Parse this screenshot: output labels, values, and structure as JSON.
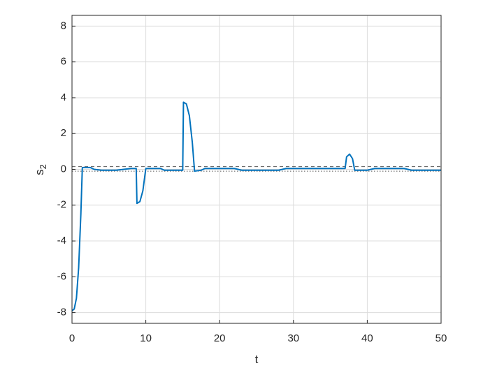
{
  "chart_data": {
    "type": "line",
    "xlabel": "t",
    "ylabel": "s",
    "ylabel_subscript": "2",
    "xlim": [
      0,
      50
    ],
    "ylim": [
      -8.6,
      8.6
    ],
    "xticks": [
      0,
      10,
      20,
      30,
      40,
      50
    ],
    "yticks": [
      -8,
      -6,
      -4,
      -2,
      0,
      2,
      4,
      6,
      8
    ],
    "grid": true,
    "series": [
      {
        "color": "#0072bd",
        "x": [
          0,
          0.3,
          0.6,
          0.9,
          1.2,
          1.4,
          2.5,
          3,
          4,
          6,
          8,
          8.7,
          8.8,
          9.2,
          9.6,
          10,
          12,
          12.5,
          15,
          15.1,
          15.5,
          15.9,
          16.3,
          16.6,
          17.5,
          18,
          22,
          23,
          28,
          29,
          37,
          37.2,
          37.6,
          38,
          38.3,
          40,
          41,
          45,
          46,
          50
        ],
        "values": [
          -7.9,
          -7.8,
          -7.2,
          -5.5,
          -2.5,
          0.1,
          0.1,
          0,
          -0.05,
          -0.05,
          0.05,
          0.05,
          -1.9,
          -1.8,
          -1.2,
          0.05,
          0.05,
          -0.05,
          -0.05,
          3.75,
          3.65,
          3.0,
          1.5,
          -0.1,
          -0.05,
          0.05,
          0.05,
          -0.05,
          -0.05,
          0.05,
          0.05,
          0.7,
          0.85,
          0.6,
          -0.05,
          -0.05,
          0.05,
          0.05,
          -0.05,
          -0.05
        ]
      }
    ],
    "hlines": [
      {
        "value": 0.15,
        "color": "#555555",
        "dash": "5,4"
      },
      {
        "value": -0.1,
        "color": "#555555",
        "dash": "1.5,2.5"
      }
    ]
  }
}
